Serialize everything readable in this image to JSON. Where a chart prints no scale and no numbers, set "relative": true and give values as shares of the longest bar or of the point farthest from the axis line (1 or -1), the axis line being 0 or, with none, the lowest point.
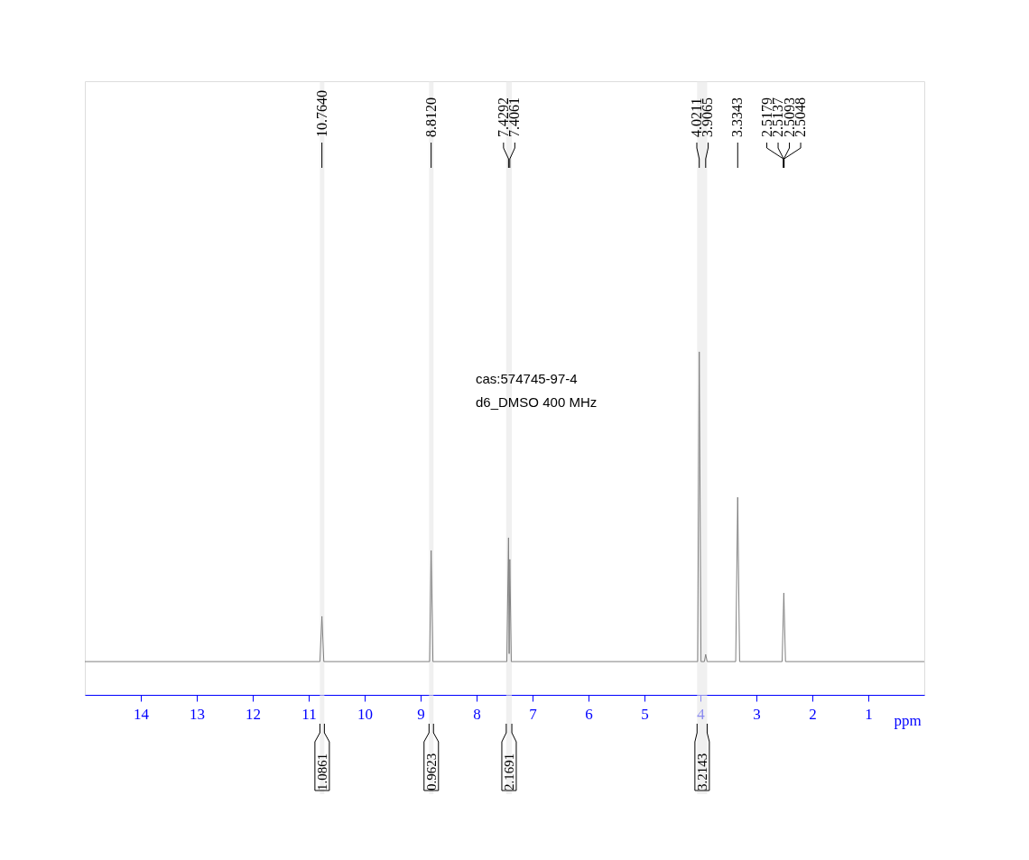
{
  "chart_data": {
    "type": "line",
    "relative": true,
    "xlabel": "ppm",
    "xlim": [
      15,
      0
    ],
    "xticks": [
      14,
      13,
      12,
      11,
      10,
      9,
      8,
      7,
      6,
      5,
      4,
      3,
      2,
      1
    ],
    "grid": false,
    "marker": "none",
    "line_style": "solid",
    "series": [
      {
        "color": "#808080",
        "x": [
          15,
          10.8,
          10.764,
          10.73,
          8.84,
          8.812,
          8.78,
          7.46,
          7.4292,
          7.418,
          7.4061,
          7.38,
          4.05,
          4.0211,
          3.99,
          3.93,
          3.9065,
          3.88,
          3.37,
          3.3343,
          3.3,
          2.54,
          2.51,
          2.48,
          0
        ],
        "values": [
          0.097,
          0.097,
          0.229,
          0.097,
          0.097,
          0.421,
          0.097,
          0.097,
          0.458,
          0.12,
          0.395,
          0.097,
          0.097,
          1,
          0.097,
          0.097,
          0.118,
          0.097,
          0.097,
          0.576,
          0.097,
          0.097,
          0.297,
          0.097,
          0.097
        ]
      }
    ],
    "bands": [
      {
        "axis": "x",
        "from": 10.8,
        "to": 10.72,
        "label": "1.0861"
      },
      {
        "axis": "x",
        "from": 8.85,
        "to": 8.77,
        "label": "0.9623"
      },
      {
        "axis": "x",
        "from": 7.47,
        "to": 7.37,
        "label": "2.1691"
      },
      {
        "axis": "x",
        "from": 4.06,
        "to": 3.88,
        "label": "3.2143"
      }
    ],
    "annotations": [
      "cas:574745-97-4",
      "d6_DMSO  400 MHz",
      {
        "text": "10.7640",
        "x": 10.764
      },
      {
        "text": "8.8120",
        "x": 8.812
      },
      {
        "text": "7.4292",
        "x": 7.4292
      },
      {
        "text": "7.4061",
        "x": 7.4061
      },
      {
        "text": "4.0211",
        "x": 4.0211
      },
      {
        "text": "3.9065",
        "x": 3.9065
      },
      {
        "text": "3.3343",
        "x": 3.3343
      },
      {
        "text": "2.5179",
        "x": 2.5179
      },
      {
        "text": "2.5137",
        "x": 2.5137
      },
      {
        "text": "2.5093",
        "x": 2.5093
      },
      {
        "text": "2.5048",
        "x": 2.5048
      }
    ]
  }
}
